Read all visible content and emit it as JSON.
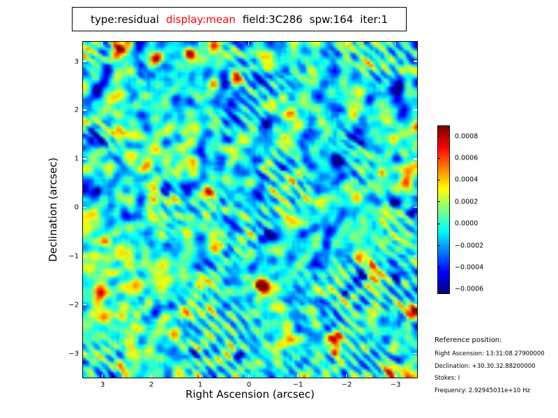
{
  "figure": {
    "background": "#ffffff",
    "title": {
      "tokens": [
        {
          "text": "type:residual",
          "color": "#000000"
        },
        {
          "text": "display:mean",
          "color": "#ff0000"
        },
        {
          "text": "field:3C286",
          "color": "#000000"
        },
        {
          "text": "spw:164",
          "color": "#000000"
        },
        {
          "text": "iter:1",
          "color": "#000000"
        }
      ]
    }
  },
  "chart_data": {
    "type": "heatmap",
    "title": "type:residual display:mean field:3C286 spw:164 iter:1",
    "xlabel": "Right Ascension (arcsec)",
    "ylabel": "Declination (arcsec)",
    "x_axis": {
      "left": 3.4,
      "right": -3.44,
      "ticks": [
        3,
        2,
        1,
        0,
        -1,
        -2,
        -3
      ],
      "tick_labels": [
        "3",
        "2",
        "1",
        "0",
        "−1",
        "−2",
        "−3"
      ]
    },
    "y_axis": {
      "top": 3.41,
      "bottom": -3.49,
      "ticks": [
        3,
        2,
        1,
        0,
        -1,
        -2,
        -3
      ],
      "tick_labels": [
        "3",
        "2",
        "1",
        "0",
        "−1",
        "−2",
        "−3"
      ]
    },
    "grid": false,
    "colormap": "jet",
    "value_range": {
      "vmin": -0.00063,
      "vmax": 0.0009
    },
    "colorbar": {
      "position": "right",
      "ticks": [
        0.0008,
        0.0006,
        0.0004,
        0.0002,
        0.0,
        -0.0002,
        -0.0004,
        -0.0006
      ],
      "tick_labels": [
        "0.0008",
        "0.0006",
        "0.0004",
        "0.0002",
        "0.0000",
        "−0.0002",
        "−0.0004",
        "−0.0006"
      ]
    },
    "description": "Interferometric residual noise map: cyan-green background near 0.0000 with diagonal dark-blue stripe pattern running upper-left to lower-right, scattered yellow blobs around +0.0003 and compact red/orange positive peaks up to ~+0.0008 and deep-blue negative peaks down to ~−0.0006",
    "texture": {
      "seed": 1337,
      "grid": 120,
      "base_amp": 1.6,
      "stripe_amp": 0.62,
      "stripe_wavelength_cells": 3.3,
      "stripe_phase_jitter": 3.5,
      "stripe_floor": 0.22,
      "stripe_patch_gain": 1.9,
      "hotspot_count": 44,
      "hotspot_amp_min": 1.2,
      "hotspot_amp_max": 2.4,
      "hotspot_sigma_min": 1.1,
      "hotspot_sigma_max": 2.1,
      "positive_fraction": 0.55,
      "value_scale": 0.00038
    }
  },
  "reference": {
    "title": "Reference position:",
    "lines": [
      "Right Ascension: 13:31:08.27900000",
      "Declination: +30.30.32.88200000",
      "Stokes: I",
      "Frequency: 2.92945031e+10 Hz"
    ]
  }
}
